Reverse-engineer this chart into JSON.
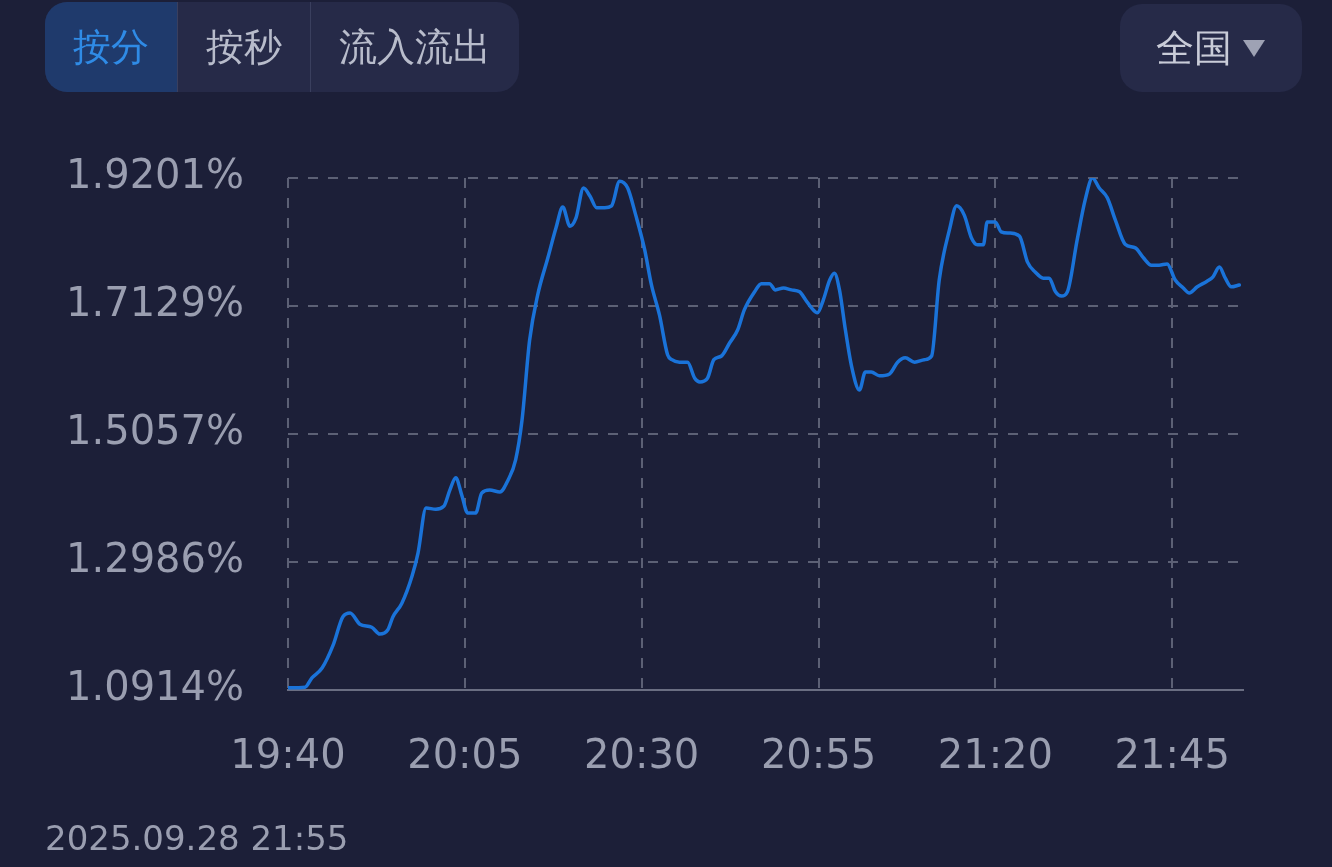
{
  "chart_data": {
    "type": "line",
    "annotations": [
      "按分",
      "按秒",
      "流入流出",
      "全国",
      "2025.09.28 21:55"
    ],
    "xlim": [
      19.6667,
      21.9167
    ],
    "xticks": [
      {
        "value": 19.6667,
        "label": "19:40"
      },
      {
        "value": 20.0833,
        "label": "20:05"
      },
      {
        "value": 20.5,
        "label": "20:30"
      },
      {
        "value": 20.9167,
        "label": "20:55"
      },
      {
        "value": 21.3333,
        "label": "21:20"
      },
      {
        "value": 21.75,
        "label": "21:45"
      }
    ],
    "ylim": [
      1.0914,
      1.9201
    ],
    "yticks": [
      {
        "value": 1.0914,
        "label": "1.0914%"
      },
      {
        "value": 1.2986,
        "label": "1.2986%"
      },
      {
        "value": 1.5057,
        "label": "1.5057%"
      },
      {
        "value": 1.7129,
        "label": "1.7129%"
      },
      {
        "value": 1.9201,
        "label": "1.9201%"
      }
    ],
    "grid": true,
    "legend": false,
    "marker": "none",
    "line_style": "solid",
    "series": [
      {
        "color": "#1a73d9",
        "x": [
          19.667,
          19.707,
          19.723,
          19.747,
          19.773,
          19.796,
          19.813,
          19.836,
          19.864,
          19.883,
          19.902,
          19.914,
          19.935,
          19.959,
          19.973,
          19.992,
          20.015,
          20.034,
          20.048,
          20.062,
          20.076,
          20.09,
          20.109,
          20.123,
          20.142,
          20.166,
          20.185,
          20.203,
          20.218,
          20.236,
          20.255,
          20.279,
          20.298,
          20.314,
          20.331,
          20.345,
          20.363,
          20.378,
          20.394,
          20.413,
          20.429,
          20.448,
          20.467,
          20.486,
          20.507,
          20.523,
          20.542,
          20.561,
          20.571,
          20.589,
          20.608,
          20.625,
          20.637,
          20.655,
          20.67,
          20.688,
          20.707,
          20.726,
          20.742,
          20.766,
          20.782,
          20.801,
          20.815,
          20.834,
          20.853,
          20.872,
          20.886,
          20.9,
          20.914,
          20.928,
          20.943,
          20.954,
          20.966,
          20.98,
          20.994,
          21.013,
          21.027,
          21.041,
          21.06,
          21.084,
          21.103,
          21.121,
          21.143,
          21.166,
          21.183,
          21.201,
          21.225,
          21.242,
          21.26,
          21.277,
          21.291,
          21.305,
          21.314,
          21.333,
          21.347,
          21.366,
          21.39,
          21.409,
          21.427,
          21.446,
          21.46,
          21.475,
          21.489,
          21.503,
          21.526,
          21.545,
          21.562,
          21.578,
          21.597,
          21.616,
          21.639,
          21.663,
          21.682,
          21.701,
          21.719,
          21.738,
          21.757,
          21.776,
          21.79,
          21.809,
          21.832,
          21.846,
          21.861,
          21.875,
          21.889,
          21.908
        ],
        "values": [
          1.095,
          1.096,
          1.111,
          1.127,
          1.164,
          1.21,
          1.216,
          1.198,
          1.193,
          1.182,
          1.189,
          1.21,
          1.232,
          1.276,
          1.313,
          1.386,
          1.384,
          1.389,
          1.415,
          1.435,
          1.407,
          1.378,
          1.378,
          1.41,
          1.415,
          1.412,
          1.431,
          1.464,
          1.528,
          1.658,
          1.731,
          1.791,
          1.839,
          1.873,
          1.842,
          1.855,
          1.904,
          1.891,
          1.872,
          1.872,
          1.875,
          1.915,
          1.904,
          1.86,
          1.804,
          1.747,
          1.698,
          1.634,
          1.626,
          1.622,
          1.622,
          1.596,
          1.59,
          1.596,
          1.626,
          1.632,
          1.653,
          1.674,
          1.707,
          1.736,
          1.749,
          1.749,
          1.739,
          1.742,
          1.739,
          1.736,
          1.723,
          1.71,
          1.702,
          1.723,
          1.755,
          1.766,
          1.739,
          1.674,
          1.617,
          1.577,
          1.606,
          1.606,
          1.6,
          1.603,
          1.622,
          1.629,
          1.622,
          1.626,
          1.632,
          1.755,
          1.836,
          1.875,
          1.86,
          1.823,
          1.812,
          1.812,
          1.849,
          1.849,
          1.833,
          1.831,
          1.826,
          1.784,
          1.768,
          1.758,
          1.758,
          1.736,
          1.729,
          1.736,
          1.82,
          1.885,
          1.92,
          1.904,
          1.888,
          1.852,
          1.813,
          1.807,
          1.791,
          1.779,
          1.779,
          1.781,
          1.755,
          1.742,
          1.734,
          1.744,
          1.753,
          1.76,
          1.776,
          1.758,
          1.744,
          1.747
        ]
      }
    ]
  }
}
